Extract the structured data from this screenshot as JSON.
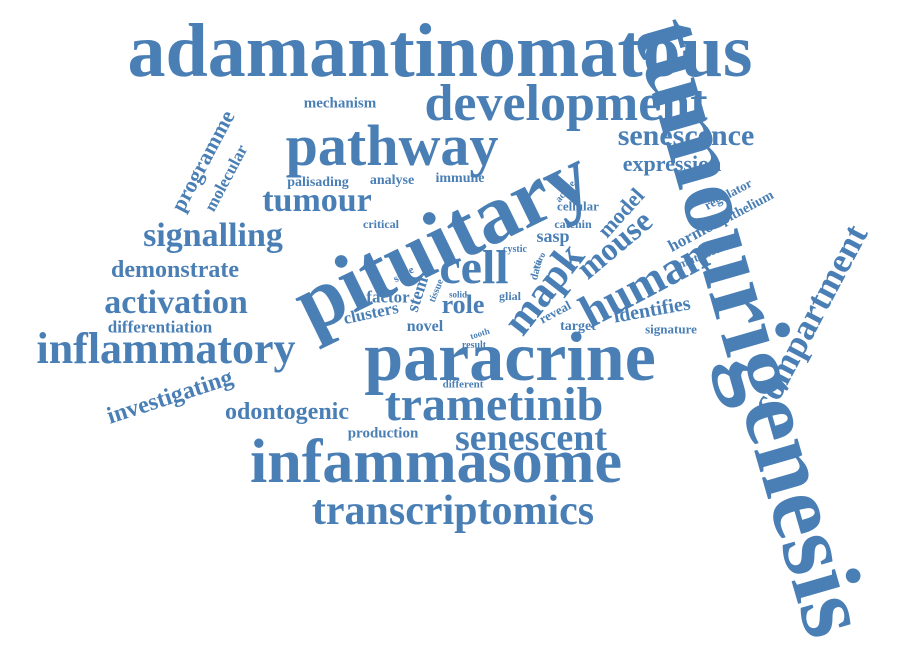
{
  "style": {
    "word_color": "#4a7fb5",
    "background": "#ffffff"
  },
  "words": [
    "adamantinomatous",
    "tumourigenesis",
    "pituitary",
    "paracrine",
    "infammasome",
    "development",
    "pathway",
    "inflammatory",
    "trametinib",
    "transcriptomics",
    "cell",
    "human",
    "mapk",
    "senescent",
    "compartment",
    "senescence",
    "signalling",
    "activation",
    "tumour",
    "mouse",
    "demonstrate",
    "investigating",
    "odontogenic",
    "expression",
    "model",
    "differentiation",
    "programme",
    "molecular",
    "identifies",
    "role",
    "mechanism",
    "palisading",
    "analyse",
    "immune",
    "hormone",
    "epithelium",
    "regulator",
    "clusters",
    "novel",
    "factor",
    "stem",
    "sasp",
    "production",
    "signature",
    "target",
    "reveal",
    "cellular",
    "catenin",
    "critical",
    "mutation",
    "glial",
    "different",
    "cystic",
    "vitro",
    "data",
    "active",
    "state",
    "tissue",
    "solid",
    "tooth",
    "result"
  ]
}
